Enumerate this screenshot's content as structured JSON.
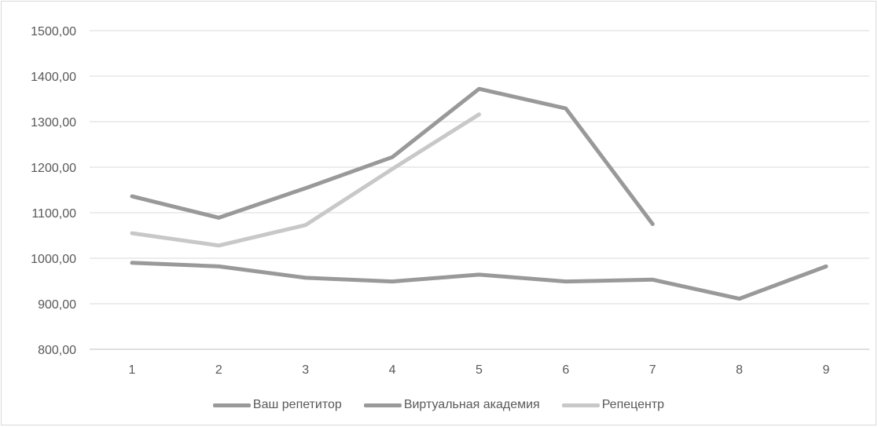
{
  "chart_data": {
    "type": "line",
    "x": [
      1,
      2,
      3,
      4,
      5,
      6,
      7,
      8,
      9
    ],
    "x_tick_labels": [
      "1",
      "2",
      "3",
      "4",
      "5",
      "6",
      "7",
      "8",
      "9"
    ],
    "y_tick_labels": [
      "800,00",
      "900,00",
      "1000,00",
      "1100,00",
      "1200,00",
      "1300,00",
      "1400,00",
      "1500,00"
    ],
    "ylim": [
      800,
      1500
    ],
    "grid": "horizontal",
    "legend_position": "bottom",
    "series": [
      {
        "name": "Ваш репетитор",
        "color": "#999999",
        "values": [
          990,
          982,
          957,
          949,
          964,
          949,
          953,
          911,
          982
        ]
      },
      {
        "name": "Виртуальная академия",
        "color": "#999999",
        "values": [
          1136,
          1089,
          1154,
          1222,
          1372,
          1329,
          1075,
          null,
          null
        ]
      },
      {
        "name": "Репецентр",
        "color": "#c8c8c8",
        "values": [
          1055,
          1028,
          1073,
          1196,
          1316,
          null,
          null,
          null,
          null
        ]
      }
    ]
  }
}
